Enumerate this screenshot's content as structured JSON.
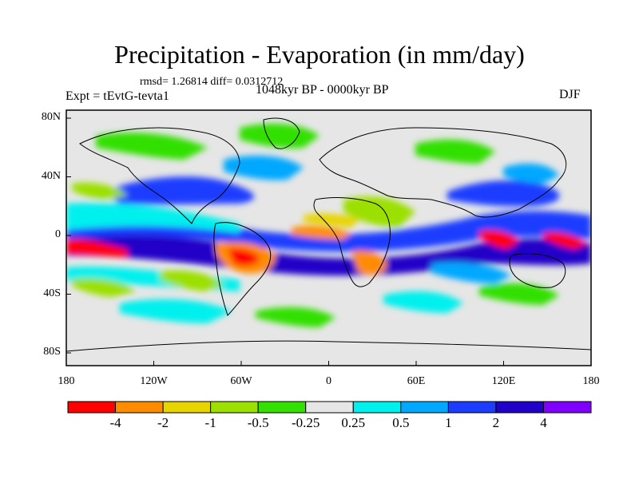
{
  "title": "Precipitation - Evaporation (in mm/day)",
  "stats": "rmsd= 1.26814 diff= 0.0312712",
  "experiment": "Expt = tEvtG-tevta1",
  "period": "1048kyr BP - 0000kyr BP",
  "season": "DJF",
  "lat_ticks": [
    "80N",
    "40N",
    "0",
    "40S",
    "80S"
  ],
  "lon_ticks": [
    "180",
    "120W",
    "60W",
    "0",
    "60E",
    "120E",
    "180"
  ],
  "colorbar": {
    "labels": [
      "-4",
      "-2",
      "-1",
      "-0.5",
      "-0.25",
      "0.25",
      "0.5",
      "1",
      "2",
      "4"
    ],
    "colors": [
      "#ff0000",
      "#ff8c00",
      "#e8d400",
      "#9be000",
      "#33e000",
      "#e6e6e6",
      "#00f0ee",
      "#00a8ff",
      "#1c3cff",
      "#2000c8",
      "#8000ff"
    ]
  },
  "colors": {
    "land_line": "#000000",
    "background": "#e6e6e6"
  }
}
